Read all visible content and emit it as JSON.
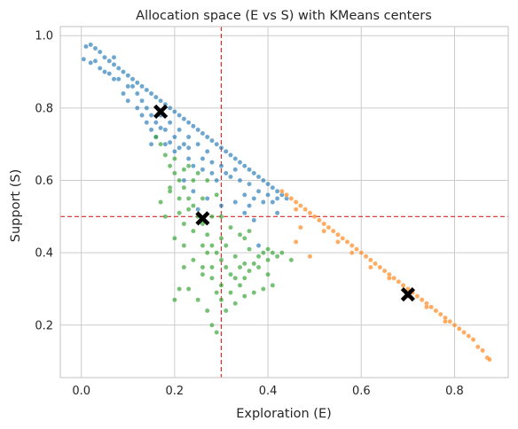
{
  "chart_data": {
    "type": "scatter",
    "title": "Allocation space (E vs S) with KMeans centers",
    "xlabel": "Exploration (E)",
    "ylabel": "Support (S)",
    "xlim": [
      -0.045,
      0.915
    ],
    "ylim": [
      0.055,
      1.025
    ],
    "xticks": [
      0.0,
      0.2,
      0.4,
      0.6,
      0.8
    ],
    "xtick_labels": [
      "0.0",
      "0.2",
      "0.4",
      "0.6",
      "0.8"
    ],
    "yticks": [
      0.2,
      0.4,
      0.6,
      0.8,
      1.0
    ],
    "ytick_labels": [
      "0.2",
      "0.4",
      "0.6",
      "0.8",
      "1.0"
    ],
    "grid": true,
    "reference_lines": [
      {
        "orientation": "vertical",
        "value": 0.3,
        "color": "#d62728",
        "style": "dashed"
      },
      {
        "orientation": "horizontal",
        "value": 0.5,
        "color": "#d62728",
        "style": "dashed"
      }
    ],
    "series": [
      {
        "color": "#1f77b4",
        "values": [
          [
            0.01,
            0.97
          ],
          [
            0.02,
            0.975
          ],
          [
            0.03,
            0.965
          ],
          [
            0.04,
            0.955
          ],
          [
            0.05,
            0.94
          ],
          [
            0.06,
            0.93
          ],
          [
            0.07,
            0.92
          ],
          [
            0.08,
            0.91
          ],
          [
            0.09,
            0.9
          ],
          [
            0.1,
            0.89
          ],
          [
            0.11,
            0.88
          ],
          [
            0.12,
            0.87
          ],
          [
            0.13,
            0.86
          ],
          [
            0.14,
            0.85
          ],
          [
            0.15,
            0.84
          ],
          [
            0.16,
            0.83
          ],
          [
            0.17,
            0.82
          ],
          [
            0.18,
            0.81
          ],
          [
            0.19,
            0.8
          ],
          [
            0.2,
            0.79
          ],
          [
            0.21,
            0.78
          ],
          [
            0.22,
            0.77
          ],
          [
            0.23,
            0.76
          ],
          [
            0.24,
            0.75
          ],
          [
            0.25,
            0.74
          ],
          [
            0.26,
            0.73
          ],
          [
            0.27,
            0.72
          ],
          [
            0.28,
            0.71
          ],
          [
            0.29,
            0.7
          ],
          [
            0.3,
            0.69
          ],
          [
            0.31,
            0.68
          ],
          [
            0.32,
            0.67
          ],
          [
            0.33,
            0.66
          ],
          [
            0.34,
            0.65
          ],
          [
            0.35,
            0.64
          ],
          [
            0.36,
            0.63
          ],
          [
            0.37,
            0.62
          ],
          [
            0.38,
            0.61
          ],
          [
            0.39,
            0.6
          ],
          [
            0.4,
            0.59
          ],
          [
            0.41,
            0.58
          ],
          [
            0.42,
            0.57
          ],
          [
            0.43,
            0.56
          ],
          [
            0.44,
            0.55
          ],
          [
            0.005,
            0.935
          ],
          [
            0.02,
            0.925
          ],
          [
            0.04,
            0.91
          ],
          [
            0.06,
            0.895
          ],
          [
            0.08,
            0.88
          ],
          [
            0.1,
            0.86
          ],
          [
            0.12,
            0.84
          ],
          [
            0.13,
            0.82
          ],
          [
            0.14,
            0.8
          ],
          [
            0.15,
            0.78
          ],
          [
            0.16,
            0.76
          ],
          [
            0.17,
            0.745
          ],
          [
            0.14,
            0.76
          ],
          [
            0.15,
            0.74
          ],
          [
            0.16,
            0.72
          ],
          [
            0.18,
            0.74
          ],
          [
            0.2,
            0.72
          ],
          [
            0.22,
            0.7
          ],
          [
            0.19,
            0.705
          ],
          [
            0.21,
            0.69
          ],
          [
            0.23,
            0.66
          ],
          [
            0.24,
            0.64
          ],
          [
            0.26,
            0.63
          ],
          [
            0.28,
            0.62
          ],
          [
            0.3,
            0.64
          ],
          [
            0.29,
            0.6
          ],
          [
            0.32,
            0.61
          ],
          [
            0.34,
            0.6
          ],
          [
            0.36,
            0.59
          ],
          [
            0.38,
            0.57
          ],
          [
            0.4,
            0.56
          ],
          [
            0.42,
            0.55
          ],
          [
            0.35,
            0.56
          ],
          [
            0.37,
            0.55
          ],
          [
            0.33,
            0.54
          ],
          [
            0.39,
            0.54
          ],
          [
            0.41,
            0.54
          ],
          [
            0.3,
            0.53
          ],
          [
            0.27,
            0.55
          ],
          [
            0.25,
            0.52
          ],
          [
            0.24,
            0.57
          ],
          [
            0.22,
            0.6
          ],
          [
            0.35,
            0.51
          ],
          [
            0.37,
            0.49
          ],
          [
            0.36,
            0.53
          ],
          [
            0.42,
            0.51
          ],
          [
            0.38,
            0.42
          ],
          [
            0.1,
            0.82
          ],
          [
            0.12,
            0.8
          ],
          [
            0.09,
            0.84
          ],
          [
            0.11,
            0.86
          ],
          [
            0.07,
            0.88
          ],
          [
            0.13,
            0.78
          ],
          [
            0.15,
            0.7
          ],
          [
            0.18,
            0.7
          ],
          [
            0.2,
            0.68
          ],
          [
            0.23,
            0.72
          ],
          [
            0.25,
            0.7
          ],
          [
            0.27,
            0.68
          ],
          [
            0.07,
            0.94
          ],
          [
            0.05,
            0.9
          ],
          [
            0.03,
            0.93
          ],
          [
            0.19,
            0.76
          ],
          [
            0.21,
            0.74
          ],
          [
            0.17,
            0.78
          ],
          [
            0.23,
            0.69
          ],
          [
            0.26,
            0.66
          ],
          [
            0.28,
            0.65
          ],
          [
            0.31,
            0.62
          ],
          [
            0.33,
            0.63
          ]
        ]
      },
      {
        "color": "#ff7f0e",
        "values": [
          [
            0.43,
            0.57
          ],
          [
            0.44,
            0.56
          ],
          [
            0.45,
            0.55
          ],
          [
            0.46,
            0.54
          ],
          [
            0.47,
            0.53
          ],
          [
            0.48,
            0.52
          ],
          [
            0.49,
            0.51
          ],
          [
            0.5,
            0.5
          ],
          [
            0.51,
            0.49
          ],
          [
            0.52,
            0.48
          ],
          [
            0.53,
            0.47
          ],
          [
            0.54,
            0.46
          ],
          [
            0.55,
            0.45
          ],
          [
            0.56,
            0.44
          ],
          [
            0.57,
            0.43
          ],
          [
            0.58,
            0.42
          ],
          [
            0.59,
            0.41
          ],
          [
            0.6,
            0.4
          ],
          [
            0.61,
            0.39
          ],
          [
            0.62,
            0.38
          ],
          [
            0.63,
            0.37
          ],
          [
            0.64,
            0.36
          ],
          [
            0.65,
            0.35
          ],
          [
            0.66,
            0.34
          ],
          [
            0.67,
            0.33
          ],
          [
            0.68,
            0.32
          ],
          [
            0.69,
            0.31
          ],
          [
            0.7,
            0.3
          ],
          [
            0.71,
            0.29
          ],
          [
            0.72,
            0.28
          ],
          [
            0.73,
            0.27
          ],
          [
            0.74,
            0.26
          ],
          [
            0.75,
            0.25
          ],
          [
            0.76,
            0.24
          ],
          [
            0.77,
            0.23
          ],
          [
            0.78,
            0.22
          ],
          [
            0.79,
            0.21
          ],
          [
            0.8,
            0.2
          ],
          [
            0.81,
            0.19
          ],
          [
            0.82,
            0.18
          ],
          [
            0.83,
            0.17
          ],
          [
            0.84,
            0.16
          ],
          [
            0.85,
            0.14
          ],
          [
            0.86,
            0.13
          ],
          [
            0.87,
            0.11
          ],
          [
            0.875,
            0.105
          ],
          [
            0.46,
            0.52
          ],
          [
            0.47,
            0.47
          ],
          [
            0.46,
            0.43
          ],
          [
            0.49,
            0.39
          ],
          [
            0.52,
            0.46
          ],
          [
            0.55,
            0.43
          ],
          [
            0.58,
            0.4
          ],
          [
            0.62,
            0.36
          ],
          [
            0.66,
            0.33
          ],
          [
            0.7,
            0.28
          ],
          [
            0.74,
            0.25
          ],
          [
            0.78,
            0.21
          ]
        ]
      },
      {
        "color": "#2ca02c",
        "values": [
          [
            0.16,
            0.72
          ],
          [
            0.17,
            0.7
          ],
          [
            0.18,
            0.67
          ],
          [
            0.19,
            0.64
          ],
          [
            0.2,
            0.62
          ],
          [
            0.21,
            0.6
          ],
          [
            0.22,
            0.58
          ],
          [
            0.23,
            0.55
          ],
          [
            0.24,
            0.53
          ],
          [
            0.25,
            0.5
          ],
          [
            0.26,
            0.48
          ],
          [
            0.27,
            0.45
          ],
          [
            0.28,
            0.42
          ],
          [
            0.29,
            0.4
          ],
          [
            0.3,
            0.38
          ],
          [
            0.31,
            0.36
          ],
          [
            0.32,
            0.34
          ],
          [
            0.33,
            0.33
          ],
          [
            0.34,
            0.31
          ],
          [
            0.35,
            0.33
          ],
          [
            0.36,
            0.35
          ],
          [
            0.37,
            0.37
          ],
          [
            0.38,
            0.39
          ],
          [
            0.39,
            0.4
          ],
          [
            0.4,
            0.41
          ],
          [
            0.41,
            0.4
          ],
          [
            0.42,
            0.39
          ],
          [
            0.43,
            0.4
          ],
          [
            0.45,
            0.38
          ],
          [
            0.2,
            0.66
          ],
          [
            0.22,
            0.63
          ],
          [
            0.24,
            0.6
          ],
          [
            0.19,
            0.58
          ],
          [
            0.21,
            0.55
          ],
          [
            0.23,
            0.52
          ],
          [
            0.18,
            0.5
          ],
          [
            0.17,
            0.54
          ],
          [
            0.2,
            0.44
          ],
          [
            0.22,
            0.42
          ],
          [
            0.24,
            0.38
          ],
          [
            0.26,
            0.36
          ],
          [
            0.28,
            0.33
          ],
          [
            0.3,
            0.31
          ],
          [
            0.32,
            0.29
          ],
          [
            0.23,
            0.3
          ],
          [
            0.25,
            0.27
          ],
          [
            0.27,
            0.24
          ],
          [
            0.28,
            0.2
          ],
          [
            0.29,
            0.18
          ],
          [
            0.2,
            0.27
          ],
          [
            0.21,
            0.3
          ],
          [
            0.22,
            0.36
          ],
          [
            0.3,
            0.44
          ],
          [
            0.31,
            0.42
          ],
          [
            0.33,
            0.39
          ],
          [
            0.35,
            0.37
          ],
          [
            0.26,
            0.55
          ],
          [
            0.28,
            0.5
          ],
          [
            0.27,
            0.6
          ],
          [
            0.25,
            0.62
          ],
          [
            0.23,
            0.64
          ],
          [
            0.29,
            0.56
          ],
          [
            0.3,
            0.5
          ],
          [
            0.32,
            0.47
          ],
          [
            0.34,
            0.45
          ],
          [
            0.36,
            0.41
          ],
          [
            0.38,
            0.36
          ],
          [
            0.4,
            0.34
          ],
          [
            0.41,
            0.31
          ],
          [
            0.39,
            0.3
          ],
          [
            0.37,
            0.29
          ],
          [
            0.35,
            0.28
          ],
          [
            0.33,
            0.26
          ],
          [
            0.31,
            0.24
          ],
          [
            0.26,
            0.42
          ],
          [
            0.27,
            0.4
          ],
          [
            0.24,
            0.46
          ],
          [
            0.22,
            0.48
          ],
          [
            0.21,
            0.51
          ],
          [
            0.19,
            0.57
          ],
          [
            0.26,
            0.34
          ],
          [
            0.28,
            0.36
          ],
          [
            0.29,
            0.29
          ],
          [
            0.3,
            0.27
          ],
          [
            0.34,
            0.36
          ],
          [
            0.35,
            0.44
          ],
          [
            0.36,
            0.46
          ],
          [
            0.4,
            0.38
          ]
        ]
      }
    ],
    "centers": [
      {
        "x": 0.17,
        "y": 0.79,
        "color": "#000000",
        "marker": "X"
      },
      {
        "x": 0.26,
        "y": 0.495,
        "color": "#000000",
        "marker": "X"
      },
      {
        "x": 0.7,
        "y": 0.285,
        "color": "#000000",
        "marker": "X"
      }
    ]
  }
}
